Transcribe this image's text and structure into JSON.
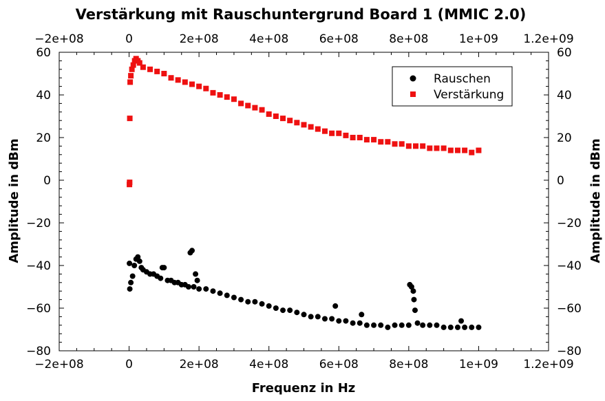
{
  "chart_data": {
    "type": "scatter",
    "title": "Verstärkung mit Rauschuntergrund Board 1 (MMIC 2.0)",
    "xlabel": "Frequenz in Hz",
    "ylabel": "Amplitude in dBm",
    "ylabel_right": "Amplitude in dBm",
    "xlim": [
      -200000000,
      1200000000
    ],
    "ylim": [
      -80,
      60
    ],
    "x_ticks": [
      -200000000,
      0,
      200000000,
      400000000,
      600000000,
      800000000,
      1000000000,
      1200000000
    ],
    "x_tick_labels": [
      "−2e+08",
      "0",
      "2e+08",
      "4e+08",
      "6e+08",
      "8e+08",
      "1e+09",
      "1.2e+09"
    ],
    "y_ticks": [
      -80,
      -60,
      -40,
      -20,
      0,
      20,
      40,
      60
    ],
    "y_tick_labels": [
      "−80",
      "−60",
      "−40",
      "−20",
      "0",
      "20",
      "40",
      "60"
    ],
    "grid": false,
    "legend_position": "top-right",
    "series": [
      {
        "name": "Rauschen",
        "color": "#000000",
        "marker": "circle",
        "points": [
          [
            1000000,
            -39
          ],
          [
            2000000,
            -51
          ],
          [
            5000000,
            -48
          ],
          [
            10000000,
            -45
          ],
          [
            15000000,
            -40
          ],
          [
            20000000,
            -37
          ],
          [
            25000000,
            -36
          ],
          [
            30000000,
            -38
          ],
          [
            35000000,
            -41
          ],
          [
            40000000,
            -42
          ],
          [
            50000000,
            -43
          ],
          [
            60000000,
            -44
          ],
          [
            70000000,
            -44
          ],
          [
            80000000,
            -45
          ],
          [
            90000000,
            -46
          ],
          [
            95000000,
            -41
          ],
          [
            100000000,
            -41
          ],
          [
            110000000,
            -47
          ],
          [
            120000000,
            -47
          ],
          [
            130000000,
            -48
          ],
          [
            140000000,
            -48
          ],
          [
            150000000,
            -49
          ],
          [
            160000000,
            -49
          ],
          [
            170000000,
            -50
          ],
          [
            175000000,
            -34
          ],
          [
            180000000,
            -33
          ],
          [
            185000000,
            -50
          ],
          [
            190000000,
            -44
          ],
          [
            195000000,
            -47
          ],
          [
            200000000,
            -51
          ],
          [
            220000000,
            -51
          ],
          [
            240000000,
            -52
          ],
          [
            260000000,
            -53
          ],
          [
            280000000,
            -54
          ],
          [
            300000000,
            -55
          ],
          [
            320000000,
            -56
          ],
          [
            340000000,
            -57
          ],
          [
            360000000,
            -57
          ],
          [
            380000000,
            -58
          ],
          [
            400000000,
            -59
          ],
          [
            420000000,
            -60
          ],
          [
            440000000,
            -61
          ],
          [
            460000000,
            -61
          ],
          [
            480000000,
            -62
          ],
          [
            500000000,
            -63
          ],
          [
            520000000,
            -64
          ],
          [
            540000000,
            -64
          ],
          [
            560000000,
            -65
          ],
          [
            580000000,
            -65
          ],
          [
            590000000,
            -59
          ],
          [
            600000000,
            -66
          ],
          [
            620000000,
            -66
          ],
          [
            640000000,
            -67
          ],
          [
            660000000,
            -67
          ],
          [
            665000000,
            -63
          ],
          [
            680000000,
            -68
          ],
          [
            700000000,
            -68
          ],
          [
            720000000,
            -68
          ],
          [
            740000000,
            -69
          ],
          [
            760000000,
            -68
          ],
          [
            780000000,
            -68
          ],
          [
            800000000,
            -68
          ],
          [
            803000000,
            -49
          ],
          [
            808000000,
            -50
          ],
          [
            813000000,
            -52
          ],
          [
            815000000,
            -56
          ],
          [
            818000000,
            -61
          ],
          [
            825000000,
            -67
          ],
          [
            840000000,
            -68
          ],
          [
            860000000,
            -68
          ],
          [
            880000000,
            -68
          ],
          [
            900000000,
            -69
          ],
          [
            920000000,
            -69
          ],
          [
            940000000,
            -69
          ],
          [
            950000000,
            -66
          ],
          [
            960000000,
            -69
          ],
          [
            980000000,
            -69
          ],
          [
            1000000000,
            -69
          ]
        ]
      },
      {
        "name": "Verstärkung",
        "color": "#ee1111",
        "marker": "square",
        "points": [
          [
            1000000,
            -2
          ],
          [
            1500000,
            -1
          ],
          [
            2000000,
            29
          ],
          [
            3000000,
            46
          ],
          [
            5000000,
            49
          ],
          [
            8000000,
            52
          ],
          [
            12000000,
            54
          ],
          [
            16000000,
            56
          ],
          [
            20000000,
            57
          ],
          [
            25000000,
            56
          ],
          [
            30000000,
            55
          ],
          [
            40000000,
            53
          ],
          [
            60000000,
            52
          ],
          [
            80000000,
            51
          ],
          [
            100000000,
            50
          ],
          [
            120000000,
            48
          ],
          [
            140000000,
            47
          ],
          [
            160000000,
            46
          ],
          [
            180000000,
            45
          ],
          [
            200000000,
            44
          ],
          [
            220000000,
            43
          ],
          [
            240000000,
            41
          ],
          [
            260000000,
            40
          ],
          [
            280000000,
            39
          ],
          [
            300000000,
            38
          ],
          [
            320000000,
            36
          ],
          [
            340000000,
            35
          ],
          [
            360000000,
            34
          ],
          [
            380000000,
            33
          ],
          [
            400000000,
            31
          ],
          [
            420000000,
            30
          ],
          [
            440000000,
            29
          ],
          [
            460000000,
            28
          ],
          [
            480000000,
            27
          ],
          [
            500000000,
            26
          ],
          [
            520000000,
            25
          ],
          [
            540000000,
            24
          ],
          [
            560000000,
            23
          ],
          [
            580000000,
            22
          ],
          [
            600000000,
            22
          ],
          [
            620000000,
            21
          ],
          [
            640000000,
            20
          ],
          [
            660000000,
            20
          ],
          [
            680000000,
            19
          ],
          [
            700000000,
            19
          ],
          [
            720000000,
            18
          ],
          [
            740000000,
            18
          ],
          [
            760000000,
            17
          ],
          [
            780000000,
            17
          ],
          [
            800000000,
            16
          ],
          [
            820000000,
            16
          ],
          [
            840000000,
            16
          ],
          [
            860000000,
            15
          ],
          [
            880000000,
            15
          ],
          [
            900000000,
            15
          ],
          [
            920000000,
            14
          ],
          [
            940000000,
            14
          ],
          [
            960000000,
            14
          ],
          [
            980000000,
            13
          ],
          [
            1000000000,
            14
          ]
        ]
      }
    ]
  }
}
